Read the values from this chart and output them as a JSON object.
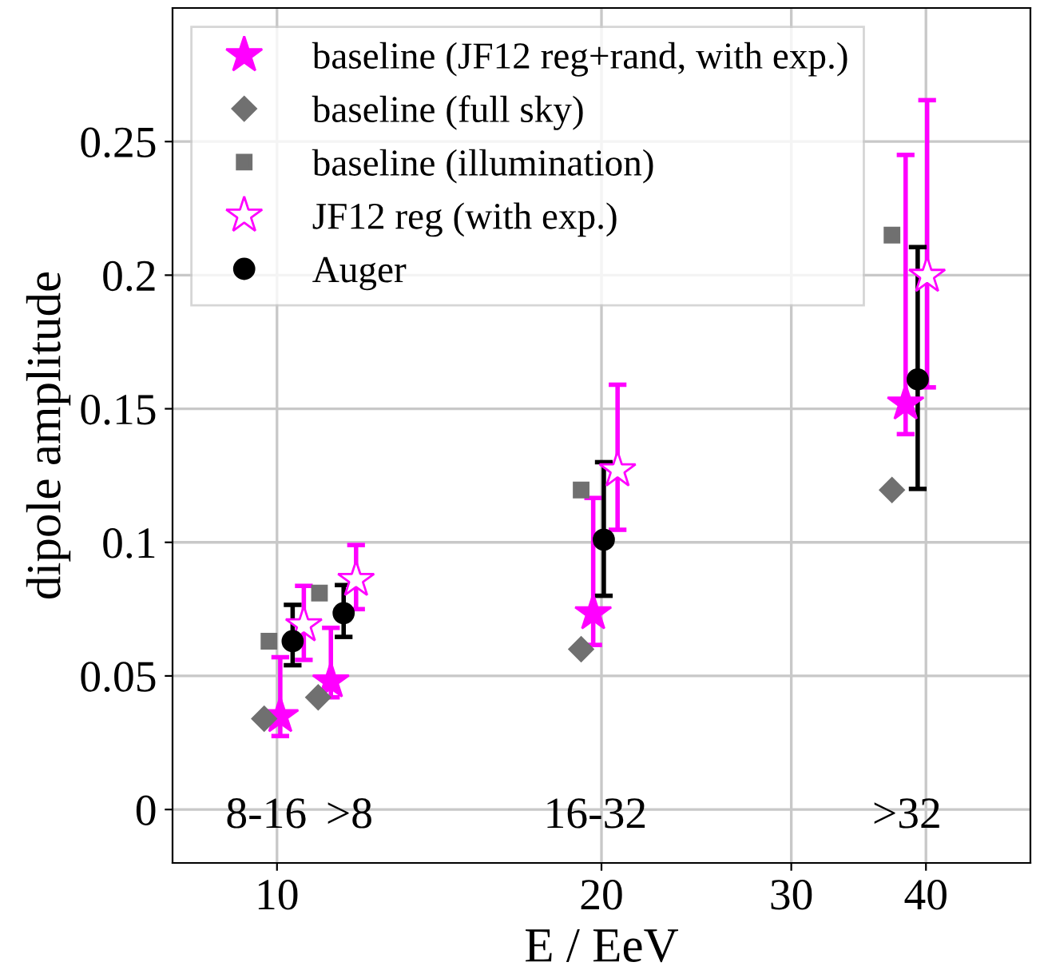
{
  "chart_data": {
    "type": "scatter",
    "xlabel": "E / EeV",
    "ylabel": "dipole amplitude",
    "log": "x",
    "xlim": [
      8,
      50
    ],
    "xticks": [
      10,
      20,
      30,
      40
    ],
    "ylim": [
      -0.02,
      0.3
    ],
    "yticks": [
      0,
      0.05,
      0.1,
      {
        "value": 0.15,
        "label": "0.15"
      },
      {
        "value": 0.2,
        "label": "0.2"
      },
      0.25
    ],
    "grid": true,
    "legend": "top left",
    "series": [
      {
        "name": "baseline (JF12 reg+rand, with exp.)",
        "color": "#ff00ff",
        "marker": "star",
        "x": [
          10.07,
          11.22,
          19.65,
          38.3
        ],
        "values": [
          0.035,
          0.048,
          0.0735,
          0.152
        ],
        "errors": [
          [
            0.0275,
            0.057
          ],
          [
            0.042,
            0.068
          ],
          [
            0.0616,
            0.1166
          ],
          [
            0.1405,
            0.245
          ]
        ]
      },
      {
        "name": "baseline (full sky)",
        "color": "#707070",
        "marker": "diamond",
        "x": [
          9.73,
          10.92,
          19.15,
          37.2
        ],
        "values": [
          0.034,
          0.042,
          0.06,
          0.1196
        ]
      },
      {
        "name": "baseline (illumination)",
        "color": "#707070",
        "marker": "square",
        "x": [
          9.83,
          10.95,
          19.15,
          37.2
        ],
        "values": [
          0.063,
          0.081,
          0.1196,
          0.215
        ]
      },
      {
        "name": "JF12 reg (with exp.)",
        "color": "#ff00ff",
        "marker": "star",
        "x": [
          10.59,
          11.84,
          20.7,
          40.1
        ],
        "values": [
          0.069,
          0.086,
          0.127,
          0.1998
        ],
        "errors": [
          [
            0.056,
            0.0837
          ],
          [
            0.075,
            0.099
          ],
          [
            0.1047,
            0.159
          ],
          [
            0.158,
            0.2655
          ]
        ]
      },
      {
        "name": "Auger",
        "color": "#000000",
        "marker": "circle",
        "x": [
          10.34,
          11.53,
          20.1,
          39.3
        ],
        "values": [
          0.063,
          0.0735,
          0.101,
          0.161
        ],
        "errors": [
          [
            0.054,
            0.0766
          ],
          [
            0.0646,
            0.084
          ],
          [
            0.08,
            0.13
          ],
          [
            0.12,
            0.2105
          ]
        ]
      }
    ],
    "annotations": [
      "8-16",
      ">8",
      "16-32",
      ">32"
    ]
  }
}
